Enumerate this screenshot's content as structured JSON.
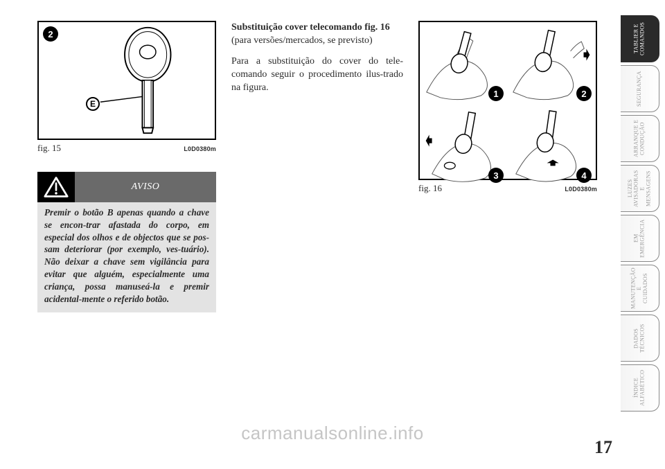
{
  "page_number": "17",
  "watermark": "carmanualsonline.info",
  "tabs": [
    {
      "label": "TABLIER E\nCOMANDOS",
      "active": true
    },
    {
      "label": "SEGURANÇA",
      "active": false
    },
    {
      "label": "ARRANQUE E\nCONDUÇÃO",
      "active": false
    },
    {
      "label": "LUZES\nAVISADORAS\nE MENSAGENS",
      "active": false
    },
    {
      "label": "EM\nEMERGÊNCIA",
      "active": false
    },
    {
      "label": "MANUTENÇÃO E\nCUIDADOS",
      "active": false
    },
    {
      "label": "DADOS\nTÉCNICOS",
      "active": false
    },
    {
      "label": "ÍNDICE\nALFABÉTICO",
      "active": false
    }
  ],
  "fig15": {
    "caption": "fig. 15",
    "code": "L0D0380m",
    "badge_corner": "2",
    "badge_pointer": "E"
  },
  "aviso": {
    "label": "AVISO",
    "body": "Premir o botão B apenas quando a chave se encon-trar afastada do corpo, em especial dos olhos e de objectos que se pos-sam deteriorar (por exemplo, ves-tuário). Não deixar a chave sem vigilância para evitar que alguém, especialmente uma criança, possa manuseá-la e premir acidental-mente o referido botão."
  },
  "col2": {
    "title": "Substituição cover telecomando fig. 16",
    "sub": "(para versões/mercados, se previsto)",
    "para": "Para a substituição do cover do tele-comando seguir o procedimento ilus-trado na figura."
  },
  "fig16": {
    "caption": "fig. 16",
    "code": "L0D0380m",
    "badges": [
      "1",
      "2",
      "3",
      "4"
    ]
  }
}
